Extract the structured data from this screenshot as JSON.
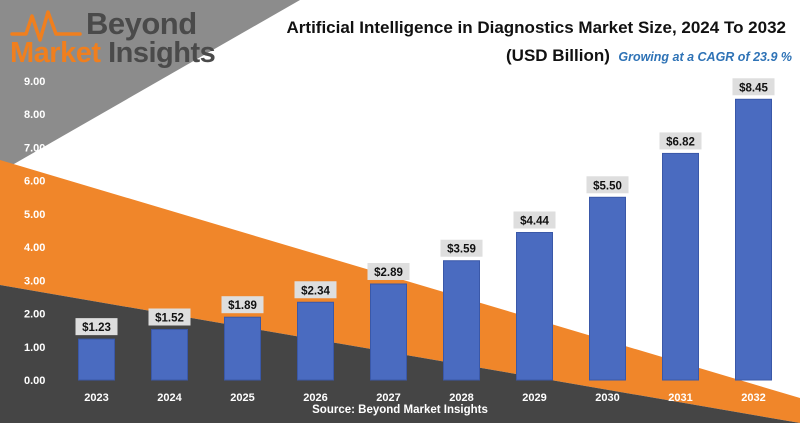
{
  "logo": {
    "line1": "Beyond",
    "line2_word1": "Market",
    "line2_word2": "Insights"
  },
  "title": "Artificial Intelligence in Diagnostics Market Size, 2024 To 2032",
  "subtitle": "(USD Billion)",
  "cagr_note": "Growing at a CAGR of 23.9 %",
  "source": "Source: Beyond Market Insights",
  "colors": {
    "bar": "#4a6bc0",
    "bar_edge": "#3a58a8",
    "orange": "#f0862a",
    "dark": "#454545",
    "gray": "#8c8c8c",
    "label_box": "#dedede"
  },
  "chart_data": {
    "type": "bar",
    "categories": [
      "2023",
      "2024",
      "2025",
      "2026",
      "2027",
      "2028",
      "2029",
      "2030",
      "2031",
      "2032"
    ],
    "values": [
      1.23,
      1.52,
      1.89,
      2.34,
      2.89,
      3.59,
      4.44,
      5.5,
      6.82,
      8.45
    ],
    "data_labels": [
      "$1.23",
      "$1.52",
      "$1.89",
      "$2.34",
      "$2.89",
      "$3.59",
      "$4.44",
      "$5.50",
      "$6.82",
      "$8.45"
    ],
    "y_ticks": [
      "0.00",
      "1.00",
      "2.00",
      "3.00",
      "4.00",
      "5.00",
      "6.00",
      "7.00",
      "8.00",
      "9.00"
    ],
    "ylim": [
      0,
      9
    ],
    "title": "Artificial Intelligence in Diagnostics Market Size, 2024 To 2032",
    "grid": false,
    "legend": "none"
  }
}
